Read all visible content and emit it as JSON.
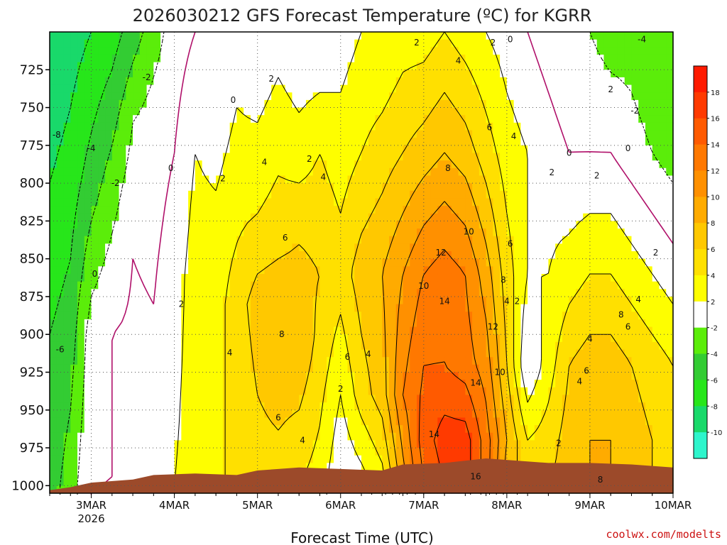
{
  "chart_data": {
    "type": "heatmap",
    "title": "2026030212 GFS Forecast Temperature (ºC) for KGRR",
    "xlabel": "Forecast Time (UTC)",
    "ylabel": "",
    "credit": "coolwx.com/modelts",
    "x_ticks": [
      {
        "label": "3MAR",
        "sublabel": "2026",
        "hour": 12
      },
      {
        "label": "4MAR",
        "hour": 36
      },
      {
        "label": "5MAR",
        "hour": 60
      },
      {
        "label": "6MAR",
        "hour": 84
      },
      {
        "label": "7MAR",
        "hour": 108
      },
      {
        "label": "8MAR",
        "hour": 132
      },
      {
        "label": "9MAR",
        "hour": 156
      },
      {
        "label": "10MAR",
        "hour": 180
      }
    ],
    "x_range_hours": [
      0,
      180
    ],
    "y_ticks": [
      725,
      750,
      775,
      800,
      825,
      850,
      875,
      900,
      925,
      950,
      975,
      1000
    ],
    "y_range_hpa": [
      700,
      1005
    ],
    "colorbar": {
      "levels": [
        -12,
        -10,
        -8,
        -6,
        -4,
        -2,
        2,
        4,
        6,
        8,
        10,
        12,
        14,
        16,
        18,
        20
      ],
      "tick_labels": [
        "18",
        "16",
        "14",
        "12",
        "10",
        "8",
        "6",
        "4",
        "2",
        "-2",
        "-4",
        "-6",
        "-8",
        "-10"
      ],
      "colors": [
        "#2ef5cc",
        "#19d96a",
        "#27e61a",
        "#33cc33",
        "#5bed0a",
        "#ffffff",
        "#fefe00",
        "#ffe000",
        "#ffc800",
        "#ffab00",
        "#ff9000",
        "#ff7800",
        "#ff5a00",
        "#ff3a00",
        "#ff1a00"
      ]
    },
    "ground_color": "#9c4a2a",
    "surface_pressure_hpa": [
      [
        0,
        1003
      ],
      [
        6,
        1001
      ],
      [
        12,
        998
      ],
      [
        24,
        996
      ],
      [
        30,
        993
      ],
      [
        42,
        992
      ],
      [
        54,
        993
      ],
      [
        60,
        990
      ],
      [
        66,
        989
      ],
      [
        72,
        988
      ],
      [
        84,
        989
      ],
      [
        96,
        990
      ],
      [
        102,
        986
      ],
      [
        114,
        985
      ],
      [
        126,
        982
      ],
      [
        132,
        983
      ],
      [
        144,
        985
      ],
      [
        156,
        985
      ],
      [
        168,
        986
      ],
      [
        180,
        988
      ]
    ],
    "temperature_columns": [
      {
        "hour": 0,
        "levels": [
          [
            700,
            -10
          ],
          [
            800,
            -8
          ],
          [
            900,
            -6
          ],
          [
            1000,
            -5
          ]
        ]
      },
      {
        "hour": 6,
        "levels": [
          [
            700,
            -9
          ],
          [
            800,
            -7
          ],
          [
            900,
            -5
          ],
          [
            1000,
            -3
          ]
        ]
      },
      {
        "hour": 12,
        "levels": [
          [
            700,
            -8
          ],
          [
            800,
            -5
          ],
          [
            900,
            -1
          ],
          [
            1000,
            0
          ]
        ]
      },
      {
        "hour": 18,
        "levels": [
          [
            700,
            -7
          ],
          [
            800,
            -3
          ],
          [
            900,
            0
          ],
          [
            1000,
            0
          ]
        ]
      },
      {
        "hour": 24,
        "levels": [
          [
            700,
            -5
          ],
          [
            760,
            -2
          ],
          [
            850,
            0
          ],
          [
            1000,
            1
          ]
        ]
      },
      {
        "hour": 30,
        "levels": [
          [
            700,
            -3
          ],
          [
            760,
            -1
          ],
          [
            880,
            0
          ],
          [
            1000,
            1
          ]
        ]
      },
      {
        "hour": 36,
        "levels": [
          [
            700,
            -1
          ],
          [
            780,
            0
          ],
          [
            860,
            1
          ],
          [
            1000,
            2
          ]
        ]
      },
      {
        "hour": 42,
        "levels": [
          [
            700,
            0
          ],
          [
            780,
            2
          ],
          [
            860,
            3
          ],
          [
            1000,
            3
          ]
        ]
      },
      {
        "hour": 48,
        "levels": [
          [
            700,
            0
          ],
          [
            760,
            1
          ],
          [
            850,
            3
          ],
          [
            1000,
            4
          ]
        ]
      },
      {
        "hour": 54,
        "levels": [
          [
            700,
            1
          ],
          [
            800,
            3
          ],
          [
            880,
            5
          ],
          [
            1000,
            4
          ]
        ]
      },
      {
        "hour": 60,
        "levels": [
          [
            700,
            0
          ],
          [
            760,
            2
          ],
          [
            820,
            4
          ],
          [
            880,
            7
          ],
          [
            1000,
            5
          ]
        ]
      },
      {
        "hour": 66,
        "levels": [
          [
            700,
            1
          ],
          [
            760,
            3
          ],
          [
            830,
            5
          ],
          [
            890,
            8
          ],
          [
            1000,
            5
          ]
        ]
      },
      {
        "hour": 72,
        "levels": [
          [
            700,
            0
          ],
          [
            780,
            3
          ],
          [
            840,
            6
          ],
          [
            900,
            8
          ],
          [
            1000,
            4
          ]
        ]
      },
      {
        "hour": 78,
        "levels": [
          [
            700,
            0
          ],
          [
            780,
            4
          ],
          [
            860,
            6
          ],
          [
            920,
            5
          ],
          [
            1000,
            3
          ]
        ]
      },
      {
        "hour": 84,
        "levels": [
          [
            700,
            1
          ],
          [
            780,
            3
          ],
          [
            860,
            5
          ],
          [
            940,
            2
          ],
          [
            1000,
            0
          ]
        ]
      },
      {
        "hour": 90,
        "levels": [
          [
            700,
            2
          ],
          [
            780,
            4
          ],
          [
            860,
            7
          ],
          [
            940,
            5
          ],
          [
            1000,
            1
          ]
        ]
      },
      {
        "hour": 96,
        "levels": [
          [
            700,
            2
          ],
          [
            780,
            5
          ],
          [
            860,
            8
          ],
          [
            940,
            7
          ],
          [
            1000,
            3
          ]
        ]
      },
      {
        "hour": 102,
        "levels": [
          [
            700,
            3
          ],
          [
            780,
            6
          ],
          [
            860,
            10
          ],
          [
            940,
            12
          ],
          [
            1000,
            9
          ]
        ]
      },
      {
        "hour": 108,
        "levels": [
          [
            700,
            3
          ],
          [
            780,
            7
          ],
          [
            860,
            12
          ],
          [
            920,
            14
          ],
          [
            970,
            15
          ],
          [
            1000,
            14
          ]
        ]
      },
      {
        "hour": 114,
        "levels": [
          [
            700,
            4
          ],
          [
            780,
            8
          ],
          [
            860,
            13
          ],
          [
            920,
            14
          ],
          [
            970,
            17
          ],
          [
            1000,
            16
          ]
        ]
      },
      {
        "hour": 120,
        "levels": [
          [
            700,
            3
          ],
          [
            780,
            7
          ],
          [
            860,
            12
          ],
          [
            920,
            13
          ],
          [
            970,
            17
          ],
          [
            1000,
            17
          ]
        ]
      },
      {
        "hour": 126,
        "levels": [
          [
            700,
            2
          ],
          [
            780,
            5
          ],
          [
            860,
            9
          ],
          [
            920,
            11
          ],
          [
            970,
            13
          ],
          [
            1000,
            13
          ]
        ]
      },
      {
        "hour": 132,
        "levels": [
          [
            700,
            1
          ],
          [
            780,
            3
          ],
          [
            860,
            5
          ],
          [
            920,
            6
          ],
          [
            970,
            8
          ],
          [
            1000,
            7
          ]
        ]
      },
      {
        "hour": 138,
        "levels": [
          [
            700,
            0
          ],
          [
            780,
            2
          ],
          [
            860,
            2
          ],
          [
            920,
            0
          ],
          [
            970,
            4
          ],
          [
            1000,
            5
          ]
        ]
      },
      {
        "hour": 144,
        "levels": [
          [
            700,
            -1
          ],
          [
            780,
            1
          ],
          [
            860,
            2
          ],
          [
            920,
            3
          ],
          [
            970,
            5
          ],
          [
            1000,
            6
          ]
        ]
      },
      {
        "hour": 150,
        "levels": [
          [
            700,
            -2
          ],
          [
            780,
            0
          ],
          [
            860,
            3
          ],
          [
            920,
            6
          ],
          [
            970,
            7
          ],
          [
            1000,
            7
          ]
        ]
      },
      {
        "hour": 156,
        "levels": [
          [
            700,
            -2
          ],
          [
            780,
            0
          ],
          [
            860,
            4
          ],
          [
            920,
            7
          ],
          [
            970,
            8
          ],
          [
            1000,
            8
          ]
        ]
      },
      {
        "hour": 162,
        "levels": [
          [
            700,
            -3
          ],
          [
            780,
            0
          ],
          [
            860,
            4
          ],
          [
            920,
            7
          ],
          [
            970,
            8
          ],
          [
            1000,
            8
          ]
        ]
      },
      {
        "hour": 168,
        "levels": [
          [
            700,
            -3
          ],
          [
            780,
            -1
          ],
          [
            860,
            3
          ],
          [
            920,
            6
          ],
          [
            970,
            7
          ],
          [
            1000,
            7
          ]
        ]
      },
      {
        "hour": 174,
        "levels": [
          [
            700,
            -4
          ],
          [
            780,
            -2
          ],
          [
            860,
            2
          ],
          [
            920,
            5
          ],
          [
            970,
            6
          ],
          [
            1000,
            6
          ]
        ]
      },
      {
        "hour": 180,
        "levels": [
          [
            700,
            -4
          ],
          [
            780,
            -3
          ],
          [
            860,
            1
          ],
          [
            920,
            4
          ],
          [
            970,
            5
          ],
          [
            1000,
            5
          ]
        ]
      }
    ],
    "contour_labels": [
      {
        "text": "-8",
        "hour": 2,
        "p": 768
      },
      {
        "text": "-6",
        "hour": 3,
        "p": 910
      },
      {
        "text": "-4",
        "hour": 12,
        "p": 777
      },
      {
        "text": "-2",
        "hour": 28,
        "p": 730
      },
      {
        "text": "-2",
        "hour": 19,
        "p": 800
      },
      {
        "text": "0",
        "hour": 13,
        "p": 860
      },
      {
        "text": "0",
        "hour": 35,
        "p": 790
      },
      {
        "text": "0",
        "hour": 53,
        "p": 745
      },
      {
        "text": "2",
        "hour": 38,
        "p": 880
      },
      {
        "text": "2",
        "hour": 50,
        "p": 797
      },
      {
        "text": "2",
        "hour": 64,
        "p": 731
      },
      {
        "text": "4",
        "hour": 62,
        "p": 786
      },
      {
        "text": "4",
        "hour": 79,
        "p": 796
      },
      {
        "text": "2",
        "hour": 75,
        "p": 784
      },
      {
        "text": "4",
        "hour": 52,
        "p": 912
      },
      {
        "text": "6",
        "hour": 68,
        "p": 836
      },
      {
        "text": "8",
        "hour": 67,
        "p": 900
      },
      {
        "text": "6",
        "hour": 66,
        "p": 955
      },
      {
        "text": "4",
        "hour": 73,
        "p": 970
      },
      {
        "text": "6",
        "hour": 86,
        "p": 915
      },
      {
        "text": "4",
        "hour": 92,
        "p": 913
      },
      {
        "text": "2",
        "hour": 84,
        "p": 936
      },
      {
        "text": "2",
        "hour": 106,
        "p": 707
      },
      {
        "text": "4",
        "hour": 118,
        "p": 719
      },
      {
        "text": "2",
        "hour": 128,
        "p": 707
      },
      {
        "text": "0",
        "hour": 133,
        "p": 705
      },
      {
        "text": "6",
        "hour": 127,
        "p": 763
      },
      {
        "text": "4",
        "hour": 134,
        "p": 769
      },
      {
        "text": "8",
        "hour": 115,
        "p": 790
      },
      {
        "text": "2",
        "hour": 145,
        "p": 793
      },
      {
        "text": "0",
        "hour": 150,
        "p": 780
      },
      {
        "text": "2",
        "hour": 158,
        "p": 795
      },
      {
        "text": "0",
        "hour": 167,
        "p": 777
      },
      {
        "text": "2",
        "hour": 162,
        "p": 738
      },
      {
        "text": "-2",
        "hour": 169,
        "p": 752
      },
      {
        "text": "-4",
        "hour": 171,
        "p": 705
      },
      {
        "text": "10",
        "hour": 121,
        "p": 832
      },
      {
        "text": "6",
        "hour": 133,
        "p": 840
      },
      {
        "text": "12",
        "hour": 113,
        "p": 846
      },
      {
        "text": "10",
        "hour": 108,
        "p": 868
      },
      {
        "text": "8",
        "hour": 131,
        "p": 864
      },
      {
        "text": "14",
        "hour": 114,
        "p": 878
      },
      {
        "text": "12",
        "hour": 128,
        "p": 895
      },
      {
        "text": "4",
        "hour": 132,
        "p": 878
      },
      {
        "text": "2",
        "hour": 135,
        "p": 878
      },
      {
        "text": "14",
        "hour": 123,
        "p": 932
      },
      {
        "text": "10",
        "hour": 130,
        "p": 925
      },
      {
        "text": "14",
        "hour": 111,
        "p": 966
      },
      {
        "text": "16",
        "hour": 123,
        "p": 994
      },
      {
        "text": "4",
        "hour": 156,
        "p": 903
      },
      {
        "text": "8",
        "hour": 165,
        "p": 887
      },
      {
        "text": "6",
        "hour": 167,
        "p": 895
      },
      {
        "text": "4",
        "hour": 170,
        "p": 877
      },
      {
        "text": "2",
        "hour": 175,
        "p": 846
      },
      {
        "text": "6",
        "hour": 155,
        "p": 924
      },
      {
        "text": "4",
        "hour": 153,
        "p": 931
      },
      {
        "text": "2",
        "hour": 147,
        "p": 972
      },
      {
        "text": "8",
        "hour": 159,
        "p": 996
      }
    ]
  }
}
